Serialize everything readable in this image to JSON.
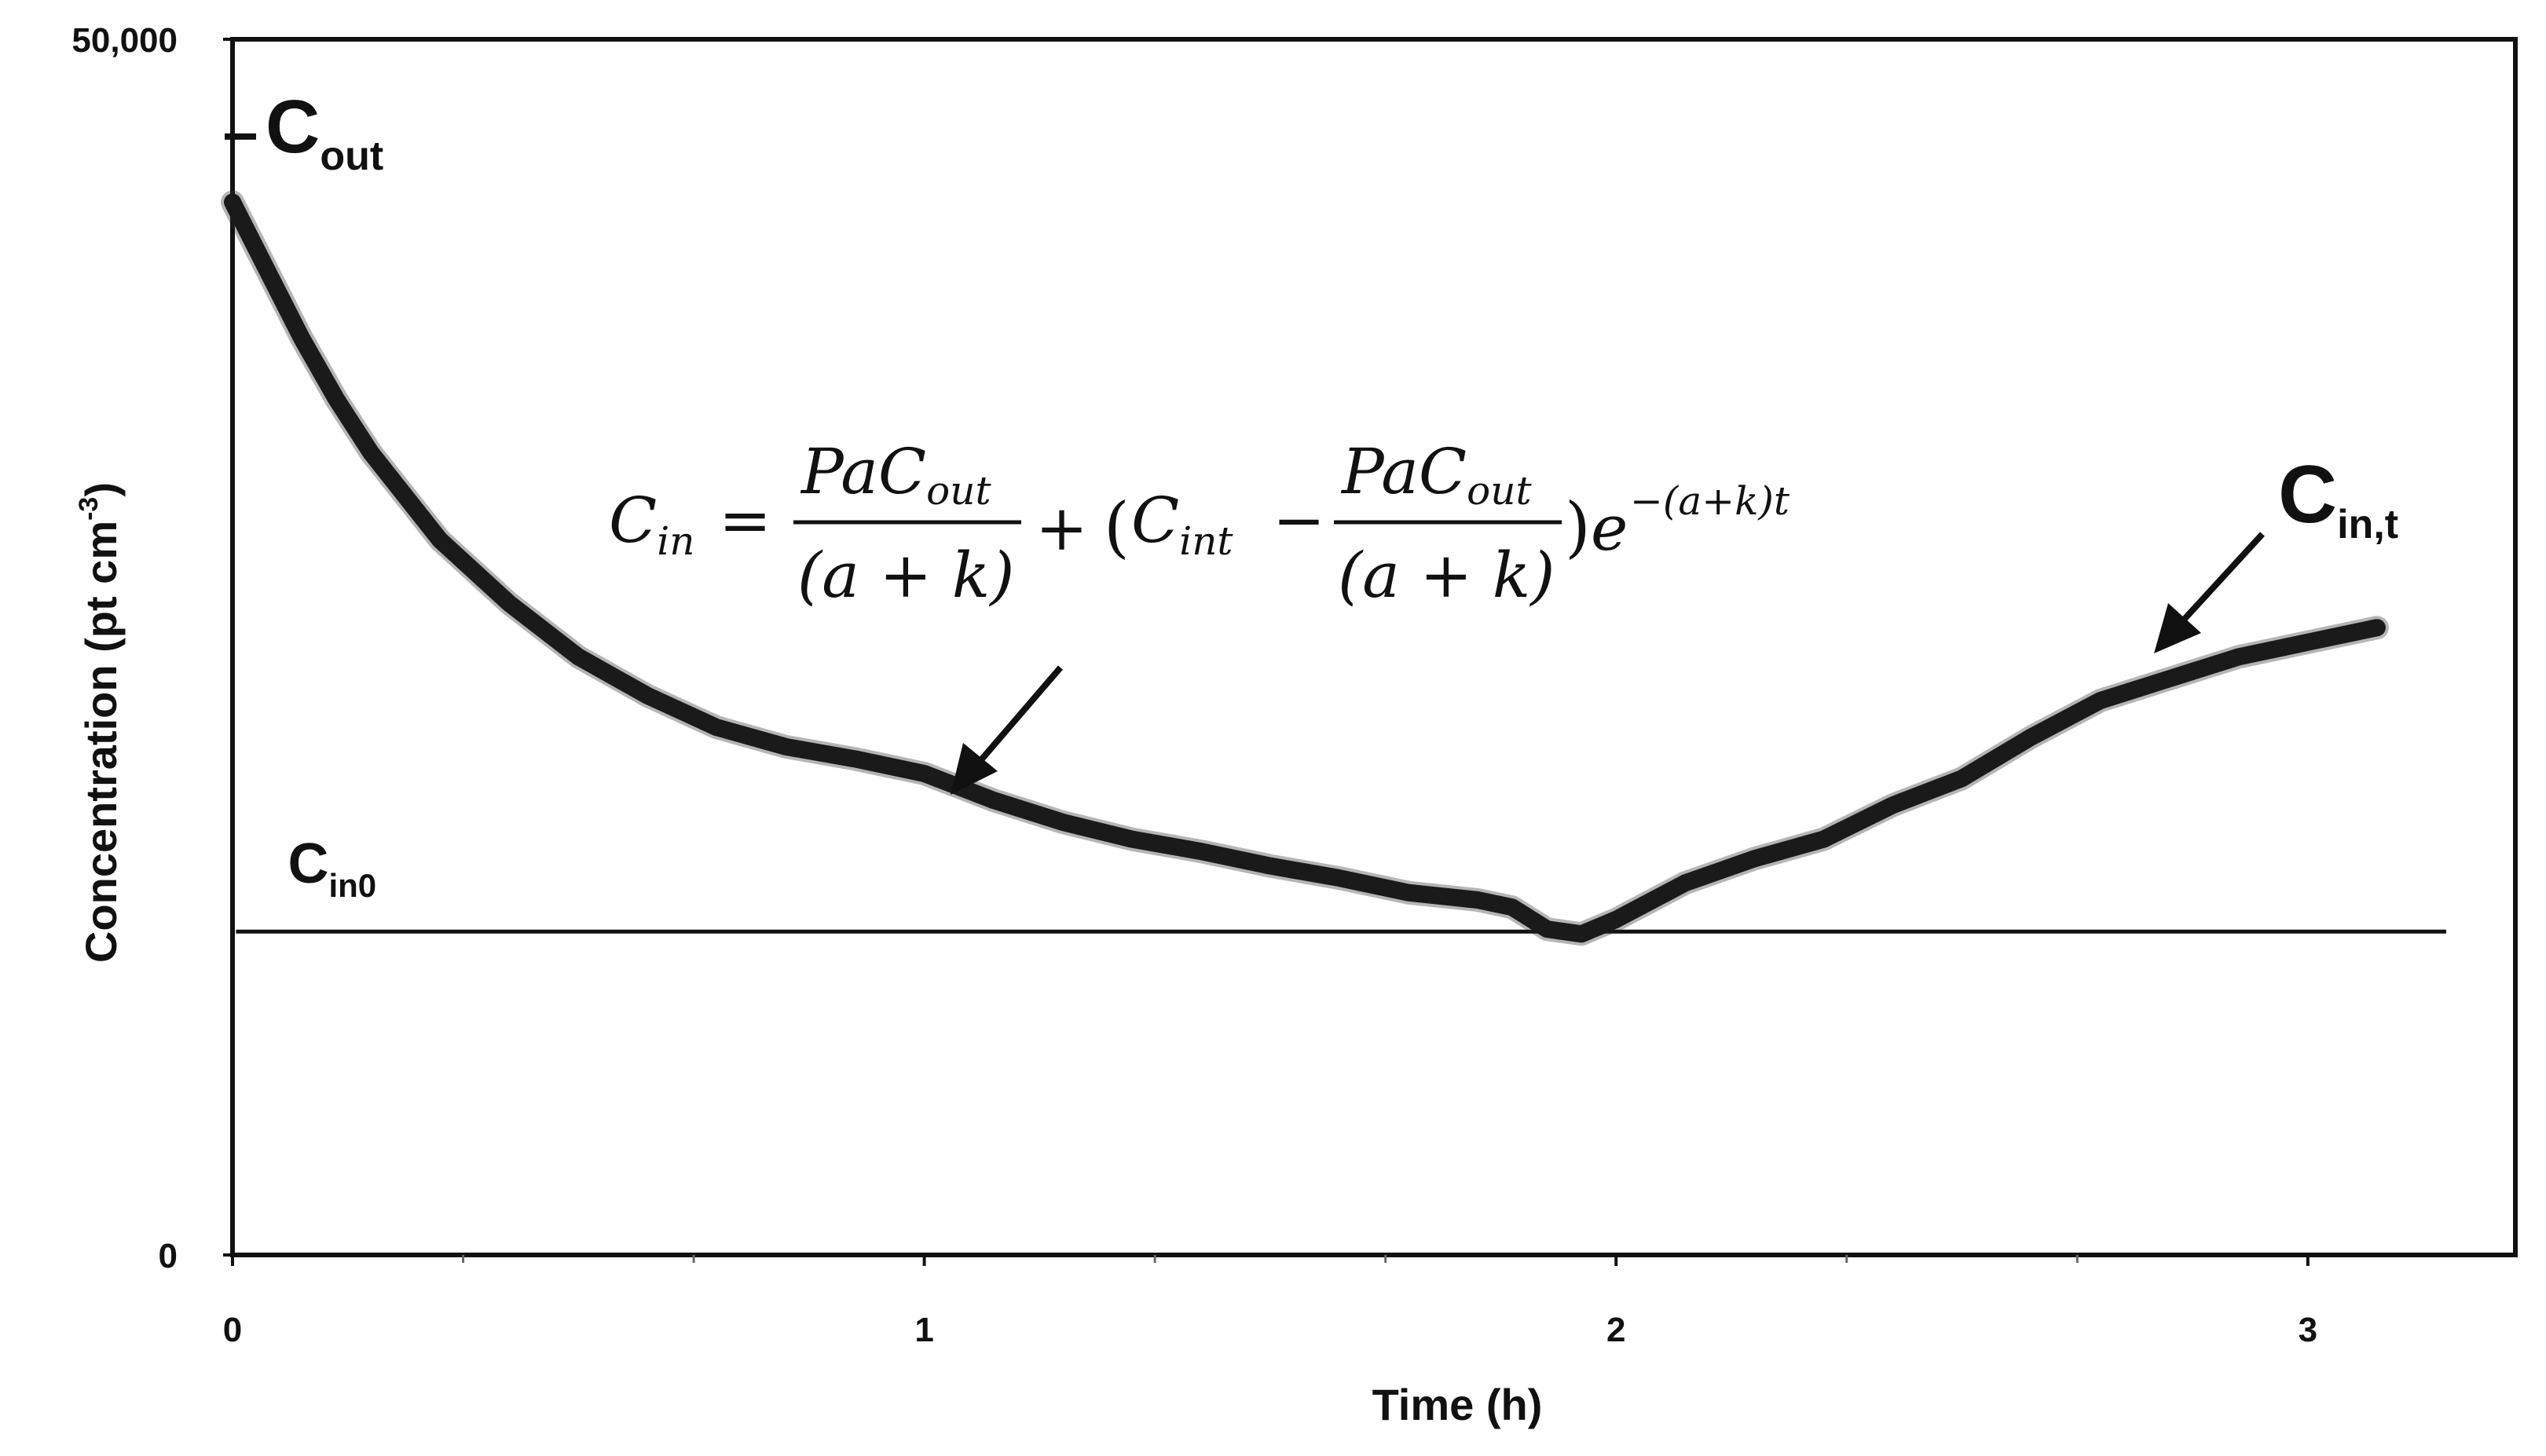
{
  "chart_data": {
    "type": "line",
    "title": "",
    "xlabel": "Time (h)",
    "ylabel": "Concentration (pt cm",
    "ylabel_superscript": "-3",
    "ylabel_close": ")",
    "xlim": [
      0,
      3.3
    ],
    "ylim": [
      0,
      50000
    ],
    "x_ticks": [
      {
        "value": 0,
        "label": "0"
      },
      {
        "value": 1,
        "label": "1"
      },
      {
        "value": 2,
        "label": "2"
      },
      {
        "value": 3,
        "label": "3"
      }
    ],
    "y_ticks": [
      {
        "value": 0,
        "label": "0"
      },
      {
        "value": 50000,
        "label": "50,000"
      }
    ],
    "series": [
      {
        "name": "Cin",
        "x": [
          0,
          0.05,
          0.1,
          0.15,
          0.2,
          0.3,
          0.4,
          0.5,
          0.6,
          0.7,
          0.8,
          0.9,
          1.0,
          1.1,
          1.2,
          1.3,
          1.4,
          1.5,
          1.6,
          1.7,
          1.8,
          1.85,
          1.9,
          1.95,
          2.0,
          2.1,
          2.2,
          2.3,
          2.4,
          2.5,
          2.6,
          2.7,
          2.8,
          2.9,
          3.0,
          3.1
        ],
        "y": [
          43300,
          40500,
          37700,
          35200,
          33000,
          29400,
          26800,
          24600,
          23000,
          21700,
          20900,
          20400,
          19800,
          18700,
          17800,
          17100,
          16600,
          16000,
          15500,
          14900,
          14600,
          14300,
          13400,
          13200,
          13800,
          15300,
          16300,
          17100,
          18500,
          19600,
          21300,
          22800,
          23700,
          24600,
          25200,
          25800
        ]
      }
    ],
    "reference_lines": [
      {
        "name": "Cin0",
        "y": 13300
      }
    ],
    "annotations": {
      "cout_main": "C",
      "cout_sub": "out",
      "cout_value": 46000,
      "cin0_main": "C",
      "cin0_sub": "in0",
      "cint_main": "C",
      "cint_sub": "in,t"
    },
    "equation": {
      "lhs_main": "C",
      "lhs_sub": "in",
      "equals": "=",
      "frac_num_main": "PaC",
      "frac_num_sub": "out",
      "frac_den": "(a + k)",
      "plus": "+",
      "paren_open": "(",
      "cint_main": "C",
      "cint_sub": "int",
      "minus": "−",
      "paren_close": ")",
      "exp_base": "e",
      "exponent": "−(a+k)t"
    }
  }
}
